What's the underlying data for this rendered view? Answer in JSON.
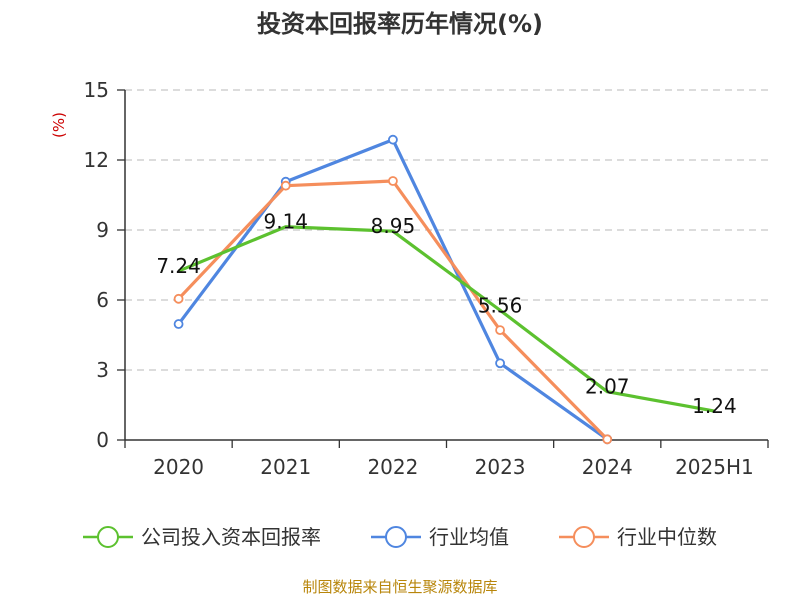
{
  "chart_data": {
    "type": "line",
    "title": "投资本回报率历年情况(%)",
    "ylabel": "(%)",
    "categories": [
      "2020",
      "2021",
      "2022",
      "2023",
      "2024",
      "2025H1"
    ],
    "ylim": [
      0,
      15
    ],
    "yticks": [
      0,
      3,
      6,
      9,
      12,
      15
    ],
    "grid": true,
    "legend_position": "bottom",
    "series": [
      {
        "name": "公司投入资本回报率",
        "color": "#5cc12f",
        "values": [
          7.24,
          9.14,
          8.95,
          5.56,
          2.07,
          1.24
        ],
        "labels": true
      },
      {
        "name": "行业均值",
        "color": "#4f86e0",
        "values": [
          4.97,
          11.07,
          12.87,
          3.29,
          0.03,
          null
        ],
        "labels": false
      },
      {
        "name": "行业中位数",
        "color": "#f58e5c",
        "values": [
          6.05,
          10.9,
          11.1,
          4.71,
          0.03,
          null
        ],
        "labels": false
      }
    ]
  },
  "source_text": "制图数据来自恒生聚源数据库"
}
